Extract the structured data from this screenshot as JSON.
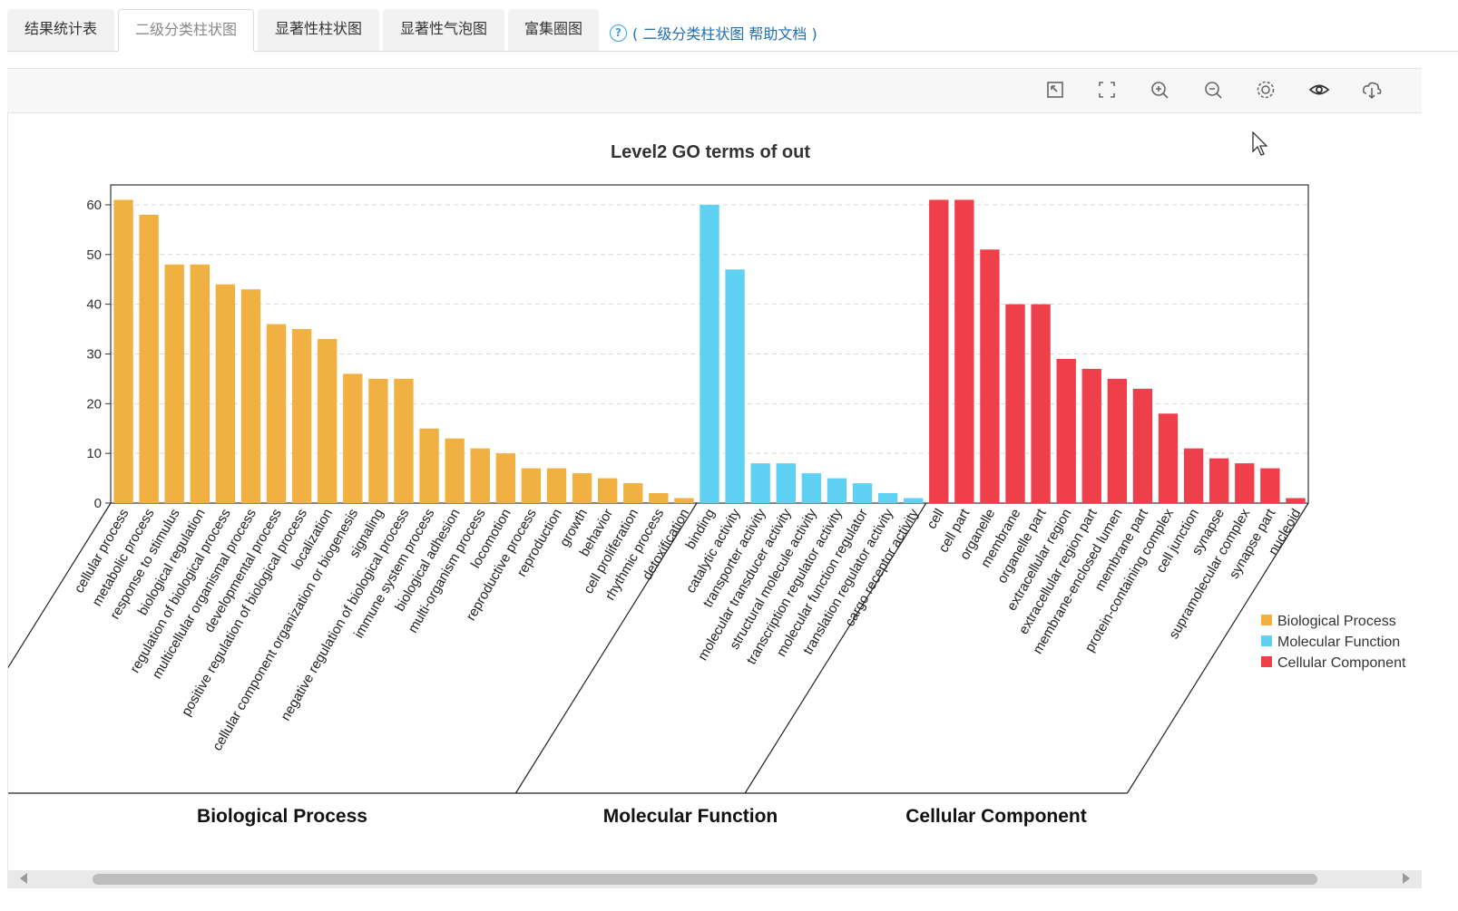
{
  "tabs": [
    {
      "label": "结果统计表",
      "active": false
    },
    {
      "label": "二级分类柱状图",
      "active": true
    },
    {
      "label": "显著性柱状图",
      "active": false
    },
    {
      "label": "显著性气泡图",
      "active": false
    },
    {
      "label": "富集圈图",
      "active": false
    }
  ],
  "help": {
    "icon": "question-circle-icon",
    "text": "( 二级分类柱状图 帮助文档 )"
  },
  "toolbar": {
    "icons": [
      "restore-icon",
      "fullscreen-icon",
      "zoom-in-icon",
      "zoom-out-icon",
      "settings-gear-icon",
      "eye-icon",
      "download-cloud-icon"
    ]
  },
  "colors": {
    "Biological Process": "#f0b042",
    "Molecular Function": "#5fd1f2",
    "Cellular Component": "#ee3f4a",
    "help_link": "#1e6fb8"
  },
  "chart_data": {
    "type": "bar",
    "title": "Level2 GO terms of out",
    "xlabel": "",
    "ylabel": "",
    "ylim": [
      0,
      64
    ],
    "yticks": [
      0,
      10,
      20,
      30,
      40,
      50,
      60
    ],
    "grid": true,
    "legend_position": "right",
    "series": [
      {
        "name": "Biological Process",
        "categories": [
          "cellular process",
          "metabolic process",
          "response to stimulus",
          "biological regulation",
          "regulation of biological process",
          "multicellular organismal process",
          "developmental process",
          "positive regulation of biological process",
          "localization",
          "cellular component organization or biogenesis",
          "signaling",
          "negative regulation of biological process",
          "immune system process",
          "biological adhesion",
          "multi-organism process",
          "locomotion",
          "reproductive process",
          "reproduction",
          "growth",
          "behavior",
          "cell proliferation",
          "rhythmic process",
          "detoxification"
        ],
        "values": [
          61,
          58,
          48,
          48,
          44,
          43,
          36,
          35,
          33,
          26,
          25,
          25,
          15,
          13,
          11,
          10,
          7,
          7,
          6,
          5,
          4,
          2,
          1
        ]
      },
      {
        "name": "Molecular Function",
        "categories": [
          "binding",
          "catalytic activity",
          "transporter activity",
          "molecular transducer activity",
          "structural molecule activity",
          "transcription regulator activity",
          "molecular function regulator",
          "translation regulator activity",
          "cargo receptor activity"
        ],
        "values": [
          60,
          47,
          8,
          8,
          6,
          5,
          4,
          2,
          1
        ]
      },
      {
        "name": "Cellular Component",
        "categories": [
          "cell",
          "cell part",
          "organelle",
          "membrane",
          "organelle part",
          "extracellular region",
          "extracellular region part",
          "membrane-enclosed lumen",
          "membrane part",
          "protein-containing complex",
          "cell junction",
          "synapse",
          "supramolecular complex",
          "synapse part",
          "nucleoid"
        ],
        "values": [
          61,
          61,
          51,
          40,
          40,
          29,
          27,
          25,
          23,
          18,
          11,
          9,
          8,
          7,
          1
        ]
      }
    ],
    "group_labels": [
      "Biological Process",
      "Molecular Function",
      "Cellular Component"
    ]
  }
}
